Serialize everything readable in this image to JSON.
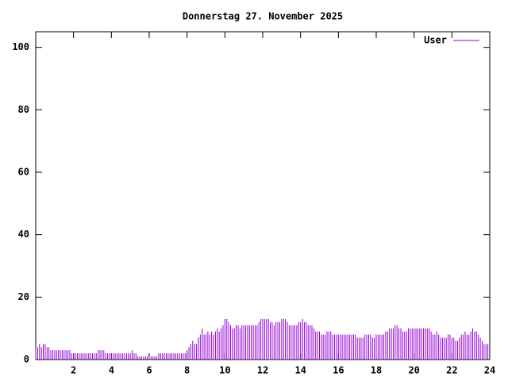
{
  "chart_data": {
    "type": "impulse",
    "title": "Donnerstag 27. November 2025",
    "xlim": [
      0,
      24
    ],
    "xticks": [
      2,
      4,
      6,
      8,
      10,
      12,
      14,
      16,
      18,
      20,
      22,
      24
    ],
    "ylim": [
      0,
      105
    ],
    "yticks": [
      0,
      20,
      40,
      60,
      80,
      100
    ],
    "legend": "top-right",
    "x": [
      0,
      0.1,
      0.2,
      0.3,
      0.4,
      0.5,
      0.6,
      0.7,
      0.8,
      0.9,
      1,
      1.1,
      1.2,
      1.3,
      1.4,
      1.5,
      1.6,
      1.7,
      1.8,
      1.9,
      2,
      2.1,
      2.2,
      2.3,
      2.4,
      2.5,
      2.6,
      2.7,
      2.8,
      2.9,
      3,
      3.1,
      3.2,
      3.3,
      3.4,
      3.5,
      3.6,
      3.7,
      3.8,
      3.9,
      4,
      4.1,
      4.2,
      4.3,
      4.4,
      4.5,
      4.6,
      4.7,
      4.8,
      4.9,
      5,
      5.1,
      5.2,
      5.3,
      5.4,
      5.5,
      5.6,
      5.7,
      5.8,
      5.9,
      6,
      6.1,
      6.2,
      6.3,
      6.4,
      6.5,
      6.6,
      6.7,
      6.8,
      6.9,
      7,
      7.1,
      7.2,
      7.3,
      7.4,
      7.5,
      7.6,
      7.7,
      7.8,
      7.9,
      8,
      8.1,
      8.2,
      8.3,
      8.4,
      8.5,
      8.6,
      8.7,
      8.8,
      8.9,
      9,
      9.1,
      9.2,
      9.3,
      9.4,
      9.5,
      9.6,
      9.7,
      9.8,
      9.9,
      10,
      10.1,
      10.2,
      10.3,
      10.4,
      10.5,
      10.6,
      10.7,
      10.8,
      10.9,
      11,
      11.1,
      11.2,
      11.3,
      11.4,
      11.5,
      11.6,
      11.7,
      11.8,
      11.9,
      12,
      12.1,
      12.2,
      12.3,
      12.4,
      12.5,
      12.6,
      12.7,
      12.8,
      12.9,
      13,
      13.1,
      13.2,
      13.3,
      13.4,
      13.5,
      13.6,
      13.7,
      13.8,
      13.9,
      14,
      14.1,
      14.2,
      14.3,
      14.4,
      14.5,
      14.6,
      14.7,
      14.8,
      14.9,
      15,
      15.1,
      15.2,
      15.3,
      15.4,
      15.5,
      15.6,
      15.7,
      15.8,
      15.9,
      16,
      16.1,
      16.2,
      16.3,
      16.4,
      16.5,
      16.6,
      16.7,
      16.8,
      16.9,
      17,
      17.1,
      17.2,
      17.3,
      17.4,
      17.5,
      17.6,
      17.7,
      17.8,
      17.9,
      18,
      18.1,
      18.2,
      18.3,
      18.4,
      18.5,
      18.6,
      18.7,
      18.8,
      18.9,
      19,
      19.1,
      19.2,
      19.3,
      19.4,
      19.5,
      19.6,
      19.7,
      19.8,
      19.9,
      20,
      20.1,
      20.2,
      20.3,
      20.4,
      20.5,
      20.6,
      20.7,
      20.8,
      20.9,
      21,
      21.1,
      21.2,
      21.3,
      21.4,
      21.5,
      21.6,
      21.7,
      21.8,
      21.9,
      22,
      22.1,
      22.2,
      22.3,
      22.4,
      22.5,
      22.6,
      22.7,
      22.8,
      22.9,
      23,
      23.1,
      23.2,
      23.3,
      23.4,
      23.5,
      23.6,
      23.7,
      23.8,
      23.9
    ],
    "series": [
      {
        "name": "User",
        "color": "#9400d3",
        "values": [
          4,
          4,
          5,
          4,
          5,
          5,
          4,
          4,
          3,
          3,
          3,
          3,
          3,
          3,
          3,
          3,
          3,
          3,
          3,
          2,
          2,
          2,
          2,
          2,
          2,
          2,
          2,
          2,
          2,
          2,
          2,
          2,
          2,
          3,
          3,
          3,
          3,
          2,
          2,
          2,
          2,
          2,
          2,
          2,
          2,
          2,
          2,
          2,
          2,
          2,
          2,
          3,
          2,
          2,
          1,
          1,
          1,
          1,
          1,
          1,
          1,
          1,
          1,
          1,
          1,
          2,
          2,
          2,
          2,
          2,
          2,
          2,
          2,
          2,
          2,
          2,
          2,
          2,
          2,
          2,
          3,
          4,
          5,
          6,
          5,
          5,
          7,
          8,
          10,
          8,
          8,
          9,
          8,
          9,
          8,
          9,
          10,
          9,
          10,
          11,
          13,
          13,
          12,
          11,
          10,
          10,
          11,
          11,
          10,
          11,
          11,
          11,
          11,
          11,
          11,
          11,
          11,
          11,
          12,
          13,
          13,
          13,
          13,
          13,
          12,
          12,
          11,
          12,
          12,
          12,
          13,
          13,
          13,
          12,
          11,
          11,
          11,
          11,
          11,
          12,
          12,
          13,
          12,
          12,
          11,
          11,
          11,
          10,
          9,
          9,
          9,
          8,
          8,
          8,
          9,
          9,
          9,
          8,
          8,
          8,
          8,
          8,
          8,
          8,
          8,
          8,
          8,
          8,
          8,
          8,
          7,
          7,
          7,
          7,
          8,
          8,
          8,
          8,
          7,
          7,
          8,
          8,
          8,
          8,
          8,
          9,
          9,
          10,
          10,
          10,
          11,
          11,
          10,
          10,
          9,
          9,
          9,
          10,
          10,
          10,
          10,
          10,
          10,
          10,
          10,
          10,
          10,
          10,
          10,
          9,
          8,
          8,
          9,
          8,
          7,
          7,
          7,
          7,
          8,
          8,
          7,
          7,
          6,
          6,
          7,
          8,
          8,
          9,
          8,
          8,
          9,
          10,
          9,
          9,
          8,
          7,
          6,
          5,
          5,
          5
        ]
      }
    ]
  }
}
